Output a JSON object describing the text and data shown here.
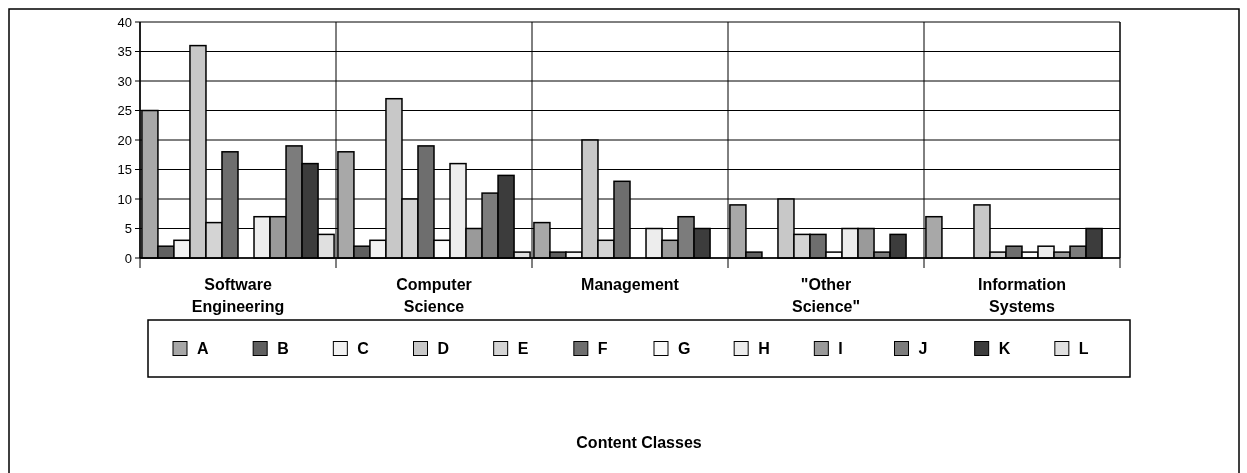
{
  "chart_data": {
    "type": "bar",
    "annotations": [
      "Content Classes"
    ],
    "categories": [
      "Software Engineering",
      "Computer Science",
      "Management",
      "\"Other Science\"",
      "Information Systems"
    ],
    "series": [
      {
        "name": "A",
        "color": "#a8a8a8",
        "values": [
          25,
          18,
          6,
          9,
          7
        ]
      },
      {
        "name": "B",
        "color": "#606060",
        "values": [
          2,
          2,
          1,
          1,
          0
        ]
      },
      {
        "name": "C",
        "color": "#f2f2f2",
        "values": [
          3,
          3,
          1,
          0,
          0
        ]
      },
      {
        "name": "D",
        "color": "#c8c8c8",
        "values": [
          36,
          27,
          20,
          10,
          9
        ]
      },
      {
        "name": "E",
        "color": "#d4d4d4",
        "values": [
          6,
          10,
          3,
          4,
          1
        ]
      },
      {
        "name": "F",
        "color": "#6e6e6e",
        "values": [
          18,
          19,
          13,
          4,
          2
        ]
      },
      {
        "name": "G",
        "color": "#fafafa",
        "values": [
          0,
          3,
          0,
          1,
          1
        ]
      },
      {
        "name": "H",
        "color": "#ededed",
        "values": [
          7,
          16,
          5,
          5,
          2
        ]
      },
      {
        "name": "I",
        "color": "#9a9a9a",
        "values": [
          7,
          5,
          3,
          5,
          1
        ]
      },
      {
        "name": "J",
        "color": "#7c7c7c",
        "values": [
          19,
          11,
          7,
          1,
          2
        ]
      },
      {
        "name": "K",
        "color": "#3c3c3c",
        "values": [
          16,
          14,
          5,
          4,
          5
        ]
      },
      {
        "name": "L",
        "color": "#e0e0e0",
        "values": [
          4,
          1,
          0,
          0,
          0
        ]
      }
    ],
    "ylim": [
      0,
      40
    ],
    "yticks": [
      0,
      5,
      10,
      15,
      20,
      25,
      30,
      35,
      40
    ],
    "grid": true,
    "legend": "bottom"
  }
}
